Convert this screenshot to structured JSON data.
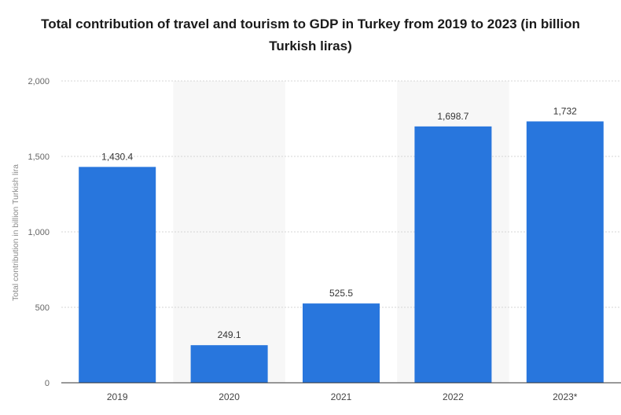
{
  "chart_data": {
    "type": "bar",
    "title": "Total contribution of travel and tourism to GDP in Turkey from 2019 to 2023 (in billion Turkish liras)",
    "xlabel": "",
    "ylabel": "Total contribution in billion Turkish lira",
    "categories": [
      "2019",
      "2020",
      "2021",
      "2022",
      "2023*"
    ],
    "values": [
      1430.4,
      249.1,
      525.5,
      1698.7,
      1732
    ],
    "value_labels": [
      "1,430.4",
      "249.1",
      "525.5",
      "1,698.7",
      "1,732"
    ],
    "ylim": [
      0,
      2000
    ],
    "yticks": [
      0,
      500,
      1000,
      1500,
      2000
    ],
    "ytick_labels": [
      "0",
      "500",
      "1,000",
      "1,500",
      "2,000"
    ],
    "grid": true,
    "bar_color": "#2876dd",
    "shaded_band_color": "#f7f7f7"
  }
}
